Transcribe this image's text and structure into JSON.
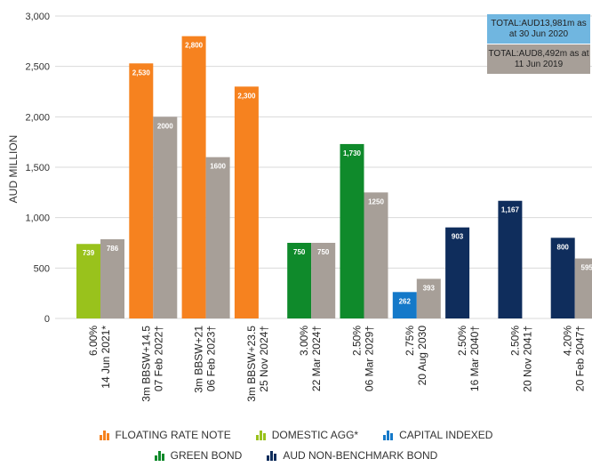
{
  "chart_data": {
    "type": "bar",
    "ylabel": "AUD MILLION",
    "ylim": [
      0,
      3000
    ],
    "yticks": [
      "0",
      "500",
      "1,000",
      "1,500",
      "2,000",
      "2,500",
      "3,000"
    ],
    "grid": true,
    "categories": [
      {
        "line1": "6.00%",
        "line2": "14 Jun 2021*"
      },
      {
        "line1": "3m BBSW+14.5",
        "line2": "07 Feb 2022†"
      },
      {
        "line1": "3m BBSW+21",
        "line2": "06 Feb 2023†"
      },
      {
        "line1": "3m BBSW+23.5",
        "line2": "25 Nov 2024†"
      },
      {
        "line1": "3.00%",
        "line2": "22 Mar 2024†"
      },
      {
        "line1": "2.50%",
        "line2": "06 Mar 2029†"
      },
      {
        "line1": "2.75%",
        "line2": "20 Aug 2030"
      },
      {
        "line1": "2.50%",
        "line2": "16 Mar 2040†"
      },
      {
        "line1": "2.50%",
        "line2": "20 Nov 2041†"
      },
      {
        "line1": "4.20%",
        "line2": "20 Feb 2047†"
      }
    ],
    "bars": [
      {
        "value_2020": 739,
        "label_2020": "739",
        "type_2020": "domestic",
        "value_2019": 786,
        "label_2019": "786"
      },
      {
        "value_2020": 2530,
        "label_2020": "2,530",
        "type_2020": "frn",
        "value_2019": 2000,
        "label_2019": "2000"
      },
      {
        "value_2020": 2800,
        "label_2020": "2,800",
        "type_2020": "frn",
        "value_2019": 1600,
        "label_2019": "1600"
      },
      {
        "value_2020": 2300,
        "label_2020": "2,300",
        "type_2020": "frn",
        "value_2019": null,
        "label_2019": null
      },
      {
        "value_2020": 750,
        "label_2020": "750",
        "type_2020": "green",
        "value_2019": 750,
        "label_2019": "750"
      },
      {
        "value_2020": 1730,
        "label_2020": "1,730",
        "type_2020": "green",
        "value_2019": 1250,
        "label_2019": "1250"
      },
      {
        "value_2020": 262,
        "label_2020": "262",
        "type_2020": "capital",
        "value_2019": 393,
        "label_2019": "393"
      },
      {
        "value_2020": 903,
        "label_2020": "903",
        "type_2020": "nonbench",
        "value_2019": null,
        "label_2019": null
      },
      {
        "value_2020": 1167,
        "label_2020": "1,167",
        "type_2020": "nonbench",
        "value_2019": null,
        "label_2019": null
      },
      {
        "value_2020": 800,
        "label_2020": "800",
        "type_2020": "nonbench",
        "value_2019": 595,
        "label_2019": "595"
      }
    ],
    "colors": {
      "frn": "#f6821f",
      "domestic": "#99c21c",
      "capital": "#1479c9",
      "green": "#0f8a2b",
      "nonbench": "#0f2d5c",
      "prior": "#a79f98",
      "total_2020_bg": "#70b6e0",
      "total_2019_bg": "#a79f98",
      "grid": "#d9d9d9"
    },
    "totals": {
      "current": "TOTAL:AUD13,981m as at 30 Jun 2020",
      "prior": "TOTAL:AUD8,492m as at 11 Jun 2019"
    },
    "legend": [
      {
        "label": "FLOATING RATE NOTE",
        "type": "frn"
      },
      {
        "label": "DOMESTIC AGG*",
        "type": "domestic"
      },
      {
        "label": "CAPITAL INDEXED",
        "type": "capital"
      },
      {
        "label": "GREEN BOND",
        "type": "green"
      },
      {
        "label": "AUD NON-BENCHMARK BOND",
        "type": "nonbench"
      }
    ]
  }
}
